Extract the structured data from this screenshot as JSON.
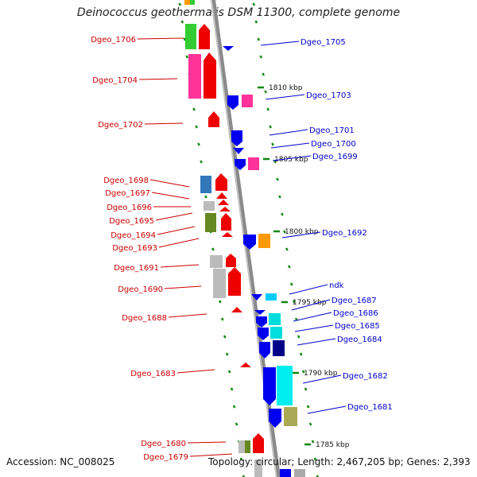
{
  "title": "Deinococcus geothermalis DSM 11300, complete genome",
  "footer": {
    "accession": "Accession: NC_008025",
    "topology": "Topology: circular; Length: 2,467,205 bp; Genes: 2,393"
  },
  "colors": {
    "left_label": "#cc0000",
    "right_label": "#0000cc",
    "backbone": "#8a8a8a",
    "tick": "#118811"
  },
  "scale_marks": [
    "1810 kbp",
    "1805 kbp",
    "1800 kbp",
    "1795 kbp",
    "1790 kbp",
    "1785 kbp"
  ],
  "left_genes": [
    "Dgeo_1706",
    "Dgeo_1704",
    "Dgeo_1702",
    "Dgeo_1698",
    "Dgeo_1697",
    "Dgeo_1696",
    "Dgeo_1695",
    "Dgeo_1694",
    "Dgeo_1693",
    "Dgeo_1691",
    "Dgeo_1690",
    "Dgeo_1688",
    "Dgeo_1683",
    "Dgeo_1680",
    "Dgeo_1679"
  ],
  "right_genes": [
    "Dgeo_1705",
    "Dgeo_1703",
    "Dgeo_1701",
    "Dgeo_1700",
    "Dgeo_1699",
    "Dgeo_1692",
    "ndk",
    "Dgeo_1687",
    "Dgeo_1686",
    "Dgeo_1685",
    "Dgeo_1684",
    "Dgeo_1682",
    "Dgeo_1681"
  ]
}
